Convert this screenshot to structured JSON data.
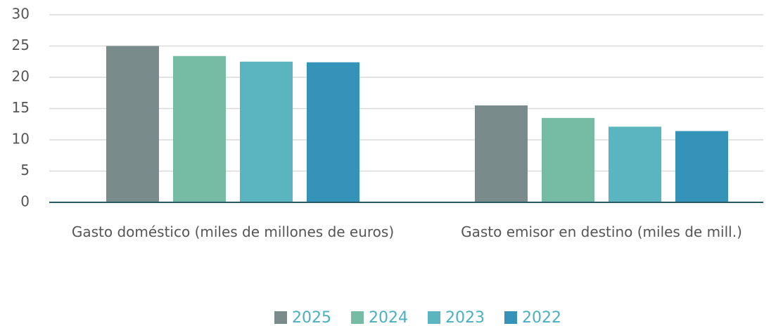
{
  "chart_data": {
    "type": "bar",
    "categories": [
      "Gasto doméstico (miles de millones de euros)",
      "Gasto emisor en destino (miles de mill.)"
    ],
    "series": [
      {
        "name": "2025",
        "color": "#7a8b8b",
        "values": [
          25,
          15.5
        ]
      },
      {
        "name": "2024",
        "color": "#76bca5",
        "values": [
          23.4,
          13.5
        ]
      },
      {
        "name": "2023",
        "color": "#5ab5c0",
        "values": [
          22.5,
          12.1
        ]
      },
      {
        "name": "2022",
        "color": "#3593b9",
        "values": [
          22.4,
          11.4
        ]
      }
    ],
    "ylim": [
      0,
      30
    ],
    "yticks": [
      0,
      5,
      10,
      15,
      20,
      25,
      30
    ],
    "grid": true,
    "legend": "bottom"
  }
}
